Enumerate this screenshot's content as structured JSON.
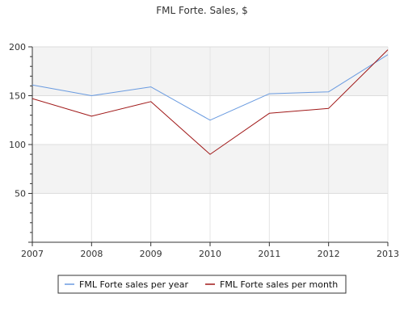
{
  "chart_data": {
    "type": "line",
    "title": "FML Forte. Sales, $",
    "xlabel": "",
    "ylabel": "",
    "x": [
      "2007",
      "2008",
      "2009",
      "2010",
      "2011",
      "2012",
      "2013"
    ],
    "ylim": [
      0,
      200
    ],
    "yticks": [
      "50",
      "100",
      "150",
      "200"
    ],
    "grid": true,
    "legend_position": "bottom",
    "series": [
      {
        "name": "FML Forte sales per year",
        "color": "#6a9be0",
        "values": [
          161,
          150,
          159,
          125,
          152,
          154,
          192
        ]
      },
      {
        "name": "FML Forte sales per month",
        "color": "#a01818",
        "values": [
          147,
          129,
          144,
          90,
          132,
          137,
          197
        ]
      }
    ]
  }
}
